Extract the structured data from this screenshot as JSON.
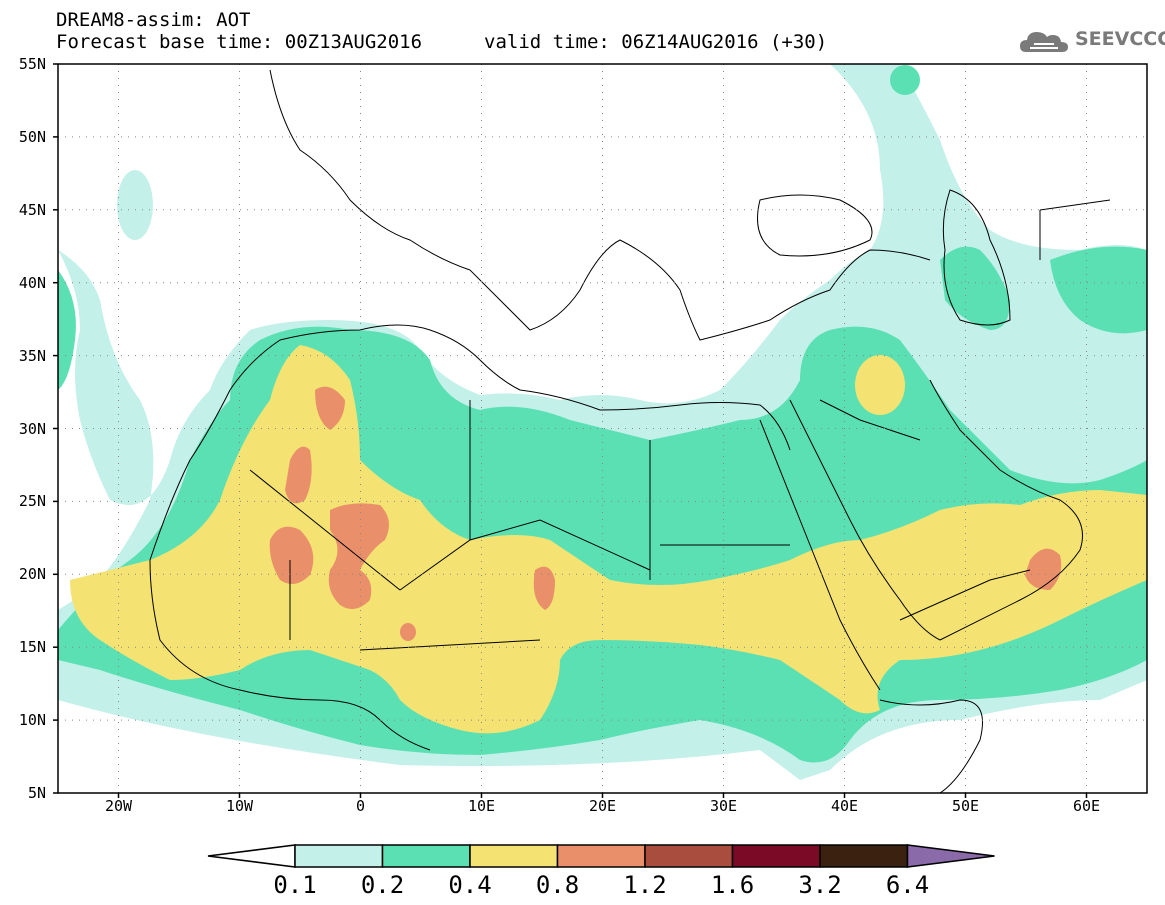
{
  "header": {
    "line1": "DREAM8-assim: AOT",
    "forecast_base": "Forecast base time: 00Z13AUG2016",
    "valid_time": "valid time: 06Z14AUG2016 (+30)"
  },
  "logo": {
    "text": "SEEVCCC",
    "icon": "cloud-logo-icon"
  },
  "map": {
    "lon_range": [
      -25,
      65
    ],
    "lat_range": [
      5,
      55
    ],
    "lat_ticks": [
      "55N",
      "50N",
      "45N",
      "40N",
      "35N",
      "30N",
      "25N",
      "20N",
      "15N",
      "10N",
      "5N"
    ],
    "lat_values": [
      55,
      50,
      45,
      40,
      35,
      30,
      25,
      20,
      15,
      10,
      5
    ],
    "lon_ticks": [
      "20W",
      "10W",
      "0",
      "10E",
      "20E",
      "30E",
      "40E",
      "50E",
      "60E"
    ],
    "lon_values": [
      -20,
      -10,
      0,
      10,
      20,
      30,
      40,
      50,
      60
    ],
    "gridlines": "dotted"
  },
  "colorbar": {
    "labels": [
      "0.1",
      "0.2",
      "0.4",
      "0.8",
      "1.2",
      "1.6",
      "3.2",
      "6.4"
    ],
    "colors": [
      "#c4f0ea",
      "#5be0b3",
      "#f4e372",
      "#e9906a",
      "#a94e3f",
      "#7a0a26",
      "#3b2210",
      "#8a6aa8"
    ],
    "left_arrow_color": "#ffffff"
  }
}
